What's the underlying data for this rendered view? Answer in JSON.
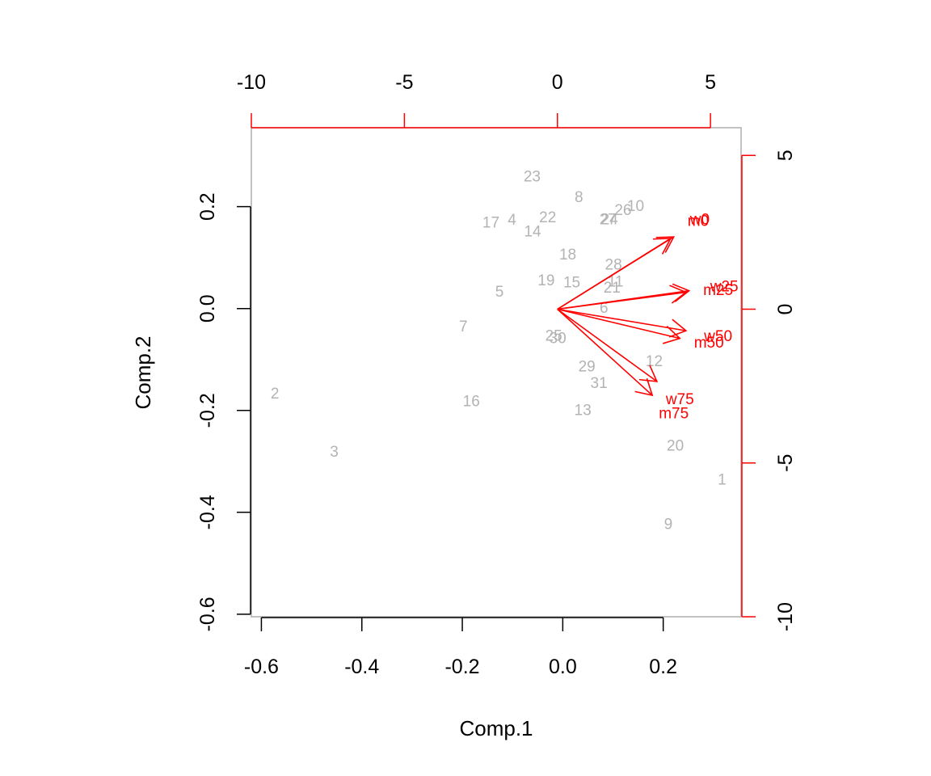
{
  "chart_data": {
    "type": "scatter",
    "subtype": "biplot",
    "title": "",
    "xlabel": "Comp.1",
    "ylabel": "Comp.2",
    "xlim": [
      -0.62,
      0.355
    ],
    "ylim": [
      -0.605,
      0.355
    ],
    "xticks": [
      -0.6,
      -0.4,
      -0.2,
      0.0,
      0.2
    ],
    "xtick_labels": [
      "-0.6",
      "-0.4",
      "-0.2",
      "0.0",
      "0.2"
    ],
    "yticks": [
      0.2,
      0.0,
      -0.2,
      -0.4,
      -0.6
    ],
    "ytick_labels": [
      "0.2",
      "0.0",
      "-0.2",
      "-0.4",
      "-0.6"
    ],
    "secondary_axes": {
      "color": "#ff0000",
      "xlim": [
        -10.0,
        6.0
      ],
      "ylim": [
        -10.0,
        5.9
      ],
      "top_ticks": [
        -10,
        -5,
        0,
        5
      ],
      "top_tick_labels": [
        "-10",
        "-5",
        "0",
        "5"
      ],
      "right_ticks": [
        5,
        0,
        -5,
        -10
      ],
      "right_tick_labels": [
        "5",
        "0",
        "-5",
        "-10"
      ]
    },
    "observation_color": "#b3b3b3",
    "points": [
      {
        "label": "1",
        "x": 0.317,
        "y": -0.337
      },
      {
        "label": "2",
        "x": -0.573,
        "y": -0.168
      },
      {
        "label": "3",
        "x": -0.455,
        "y": -0.282
      },
      {
        "label": "4",
        "x": -0.101,
        "y": 0.173
      },
      {
        "label": "5",
        "x": -0.126,
        "y": 0.032
      },
      {
        "label": "6",
        "x": 0.082,
        "y": 0.0
      },
      {
        "label": "7",
        "x": -0.198,
        "y": -0.036
      },
      {
        "label": "8",
        "x": 0.032,
        "y": 0.218
      },
      {
        "label": "9",
        "x": 0.21,
        "y": -0.424
      },
      {
        "label": "10",
        "x": 0.145,
        "y": 0.2
      },
      {
        "label": "11",
        "x": 0.105,
        "y": 0.052
      },
      {
        "label": "12",
        "x": 0.182,
        "y": -0.104
      },
      {
        "label": "13",
        "x": 0.04,
        "y": -0.2
      },
      {
        "label": "14",
        "x": -0.06,
        "y": 0.15
      },
      {
        "label": "15",
        "x": 0.018,
        "y": 0.05
      },
      {
        "label": "16",
        "x": -0.182,
        "y": -0.183
      },
      {
        "label": "17",
        "x": -0.143,
        "y": 0.168
      },
      {
        "label": "18",
        "x": 0.01,
        "y": 0.105
      },
      {
        "label": "19",
        "x": -0.033,
        "y": 0.054
      },
      {
        "label": "20",
        "x": 0.224,
        "y": -0.27
      },
      {
        "label": "21",
        "x": 0.098,
        "y": 0.04
      },
      {
        "label": "22",
        "x": -0.03,
        "y": 0.178
      },
      {
        "label": "23",
        "x": -0.061,
        "y": 0.258
      },
      {
        "label": "24",
        "x": 0.093,
        "y": 0.174
      },
      {
        "label": "25",
        "x": -0.018,
        "y": -0.054
      },
      {
        "label": "26",
        "x": 0.12,
        "y": 0.192
      },
      {
        "label": "27",
        "x": 0.09,
        "y": 0.174
      },
      {
        "label": "28",
        "x": 0.101,
        "y": 0.085
      },
      {
        "label": "29",
        "x": 0.048,
        "y": -0.115
      },
      {
        "label": "30",
        "x": -0.01,
        "y": -0.059
      },
      {
        "label": "31",
        "x": 0.072,
        "y": -0.147
      }
    ],
    "loadings_color": "#ff0000",
    "loadings": [
      {
        "label": "w0",
        "x": 3.8,
        "y": 2.35,
        "label_x": 4.65,
        "label_y": 2.9
      },
      {
        "label": "m0",
        "x": 3.7,
        "y": 2.3,
        "label_x": 4.6,
        "label_y": 2.85
      },
      {
        "label": "w25",
        "x": 4.3,
        "y": 0.6,
        "label_x": 5.45,
        "label_y": 0.72
      },
      {
        "label": "m25",
        "x": 4.2,
        "y": 0.55,
        "label_x": 5.25,
        "label_y": 0.6
      },
      {
        "label": "w50",
        "x": 4.2,
        "y": -0.7,
        "label_x": 5.25,
        "label_y": -0.9
      },
      {
        "label": "m50",
        "x": 4.0,
        "y": -0.95,
        "label_x": 4.95,
        "label_y": -1.1
      },
      {
        "label": "w75",
        "x": 3.25,
        "y": -2.35,
        "label_x": 4.0,
        "label_y": -2.95
      },
      {
        "label": "m75",
        "x": 3.1,
        "y": -2.8,
        "label_x": 3.8,
        "label_y": -3.4
      }
    ]
  }
}
